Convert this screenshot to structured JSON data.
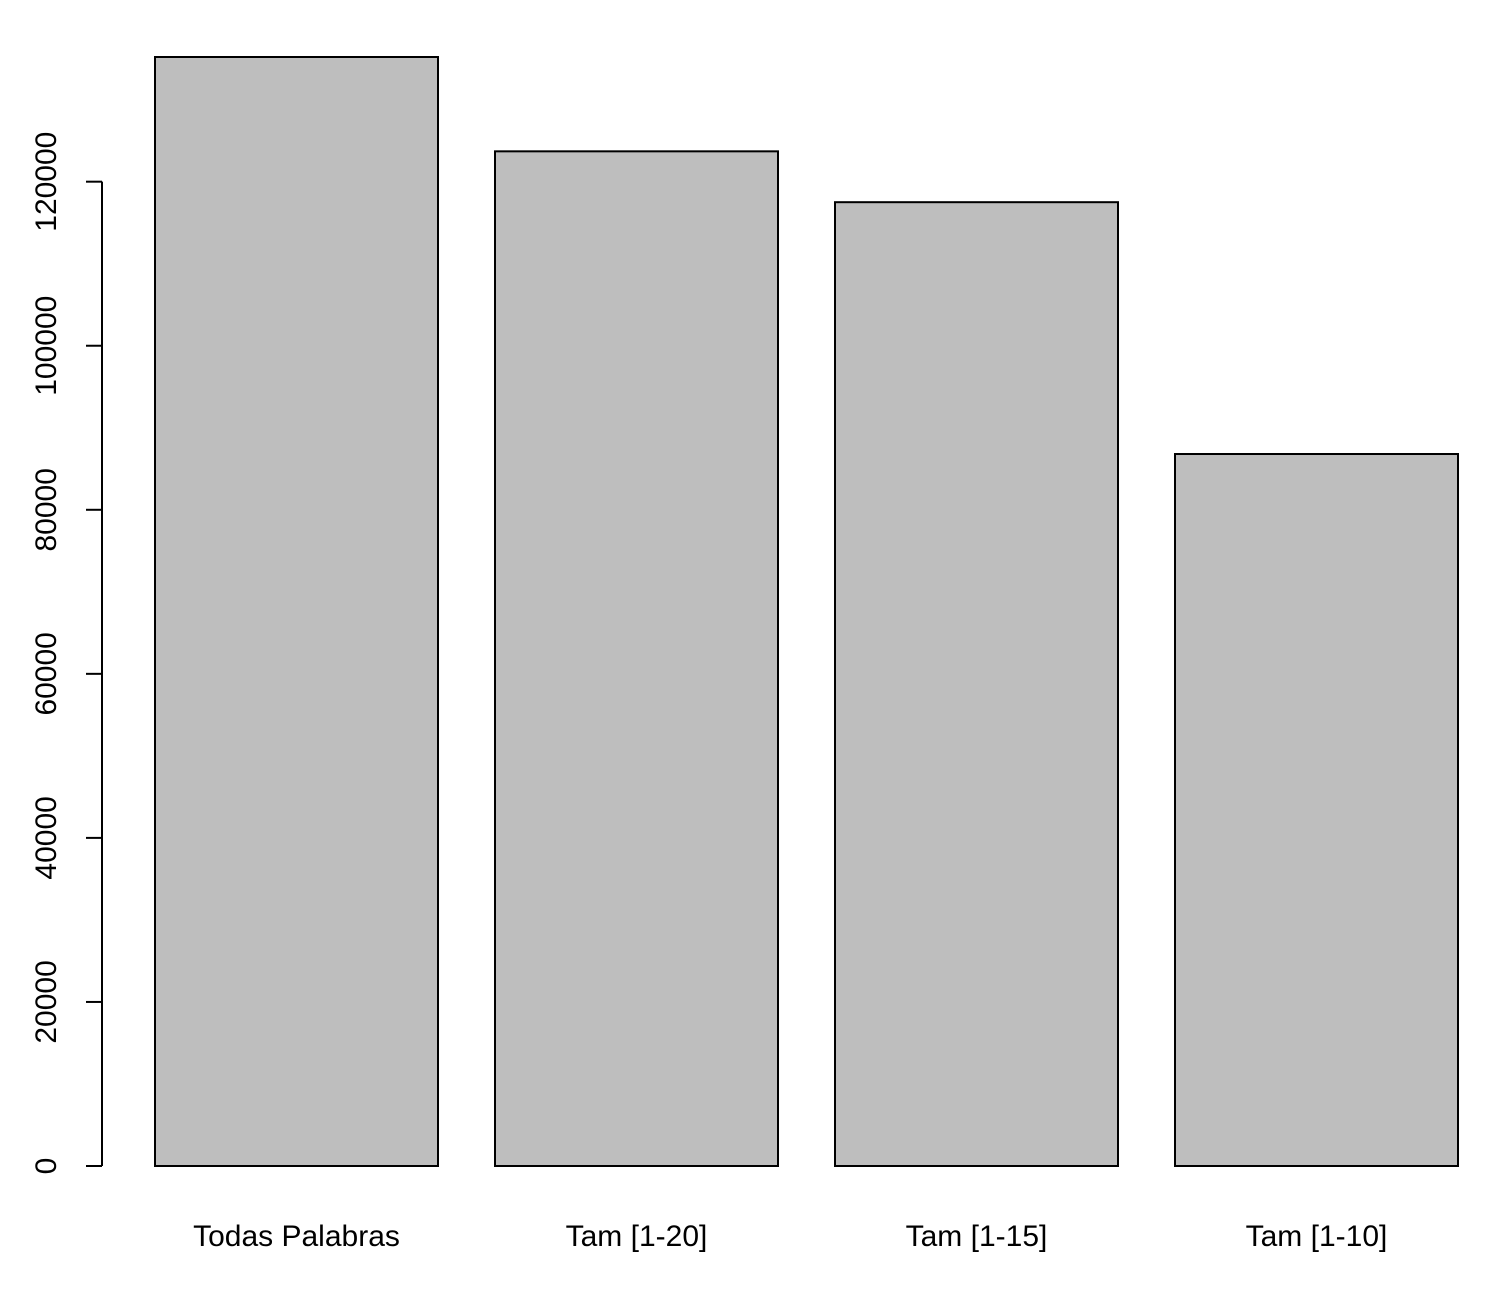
{
  "chart_data": {
    "type": "bar",
    "categories": [
      "Todas Palabras",
      "Tam [1-20]",
      "Tam [1-15]",
      "Tam [1-10]"
    ],
    "values": [
      135200,
      123700,
      117500,
      86800
    ],
    "title": "",
    "xlabel": "",
    "ylabel": "",
    "ylim": [
      0,
      135200
    ],
    "yticks": [
      0,
      20000,
      40000,
      60000,
      80000,
      100000,
      120000
    ],
    "ytick_labels": [
      "0",
      "20000",
      "40000",
      "60000",
      "80000",
      "100000",
      "120000"
    ],
    "grid": false,
    "legend": "none",
    "colors": {
      "bar_fill": "#bebebe",
      "bar_stroke": "#000000",
      "axis": "#000000",
      "background": "#ffffff"
    }
  }
}
